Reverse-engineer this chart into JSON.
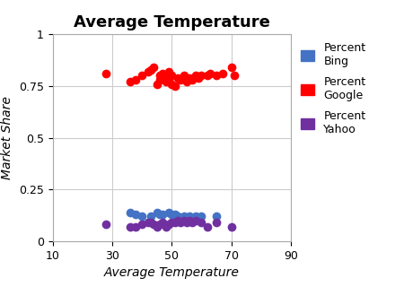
{
  "title": "Average Temperature",
  "xlabel": "Average Temperature",
  "ylabel": "Market Share",
  "xlim": [
    10,
    90
  ],
  "ylim": [
    0,
    1
  ],
  "xticks": [
    10,
    30,
    50,
    70,
    90
  ],
  "yticks": [
    0,
    0.25,
    0.5,
    0.75,
    1.0
  ],
  "ytick_labels": [
    "0",
    "0.25",
    "0.5",
    "0.75",
    "1"
  ],
  "google_x": [
    28,
    36,
    38,
    40,
    42,
    43,
    44,
    45,
    46,
    46,
    47,
    47,
    48,
    48,
    49,
    49,
    50,
    50,
    51,
    52,
    53,
    54,
    55,
    56,
    57,
    58,
    59,
    60,
    62,
    63,
    65,
    67,
    70,
    71
  ],
  "google_y": [
    0.81,
    0.77,
    0.78,
    0.8,
    0.82,
    0.83,
    0.84,
    0.76,
    0.8,
    0.78,
    0.79,
    0.81,
    0.77,
    0.8,
    0.78,
    0.82,
    0.76,
    0.8,
    0.75,
    0.79,
    0.78,
    0.8,
    0.77,
    0.79,
    0.78,
    0.8,
    0.79,
    0.8,
    0.8,
    0.81,
    0.8,
    0.81,
    0.84,
    0.8
  ],
  "bing_x": [
    36,
    38,
    40,
    43,
    45,
    46,
    47,
    49,
    50,
    51,
    52,
    54,
    56,
    58,
    60,
    65
  ],
  "bing_y": [
    0.14,
    0.13,
    0.12,
    0.12,
    0.14,
    0.13,
    0.13,
    0.14,
    0.13,
    0.13,
    0.12,
    0.12,
    0.12,
    0.12,
    0.12,
    0.12
  ],
  "yahoo_x": [
    28,
    36,
    38,
    40,
    42,
    43,
    44,
    45,
    46,
    47,
    48,
    49,
    50,
    51,
    52,
    53,
    54,
    55,
    56,
    57,
    58,
    60,
    62,
    65,
    70
  ],
  "yahoo_y": [
    0.08,
    0.07,
    0.07,
    0.08,
    0.09,
    0.09,
    0.08,
    0.07,
    0.08,
    0.09,
    0.07,
    0.08,
    0.09,
    0.09,
    0.1,
    0.09,
    0.1,
    0.09,
    0.1,
    0.09,
    0.1,
    0.09,
    0.07,
    0.09,
    0.07
  ],
  "google_color": "#FF0000",
  "bing_color": "#4472C4",
  "yahoo_color": "#7030A0",
  "marker_size": 7,
  "title_fontsize": 13,
  "label_fontsize": 10,
  "legend_fontsize": 9,
  "tick_fontsize": 9,
  "grid_color": "#cccccc"
}
